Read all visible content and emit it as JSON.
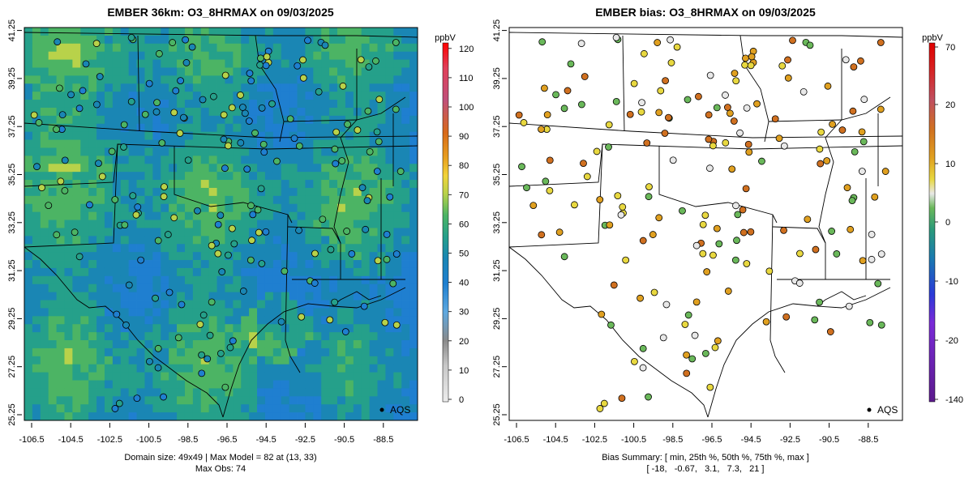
{
  "panels": [
    {
      "title": "EMBER 36km: O3_8HRMAX on 09/03/2025",
      "legend_point_label": "AQS",
      "x_ticks": [
        "-106.5",
        "-104.5",
        "-102.5",
        "-100.5",
        "-98.5",
        "-96.5",
        "-94.5",
        "-92.5",
        "-90.5",
        "-88.5"
      ],
      "y_ticks": [
        "25.25",
        "27.25",
        "29.25",
        "31.25",
        "33.25",
        "35.25",
        "37.25",
        "39.25",
        "41.25"
      ],
      "footer_lines": [
        "Domain size: 49x49 | Max Model = 82 at (13, 33)",
        "Max Obs: 74"
      ],
      "colorbar": {
        "unit": "ppbV",
        "tick_labels": [
          "0",
          "10",
          "20",
          "30",
          "40",
          "50",
          "60",
          "70",
          "80",
          "90",
          "100",
          "110",
          "120"
        ]
      }
    },
    {
      "title": "EMBER bias: O3_8HRMAX on 09/03/2025",
      "legend_point_label": "AQS",
      "x_ticks": [
        "-106.5",
        "-104.5",
        "-102.5",
        "-100.5",
        "-98.5",
        "-96.5",
        "-94.5",
        "-92.5",
        "-90.5",
        "-88.5"
      ],
      "y_ticks": [
        "25.25",
        "27.25",
        "29.25",
        "31.25",
        "33.25",
        "35.25",
        "37.25",
        "39.25",
        "41.25"
      ],
      "footer_lines": [
        "Bias Summary: [ min, 25th %, 50th %, 75th %, max ]",
        "[ -18,   -0.67,   3.1,   7.3,   21 ]"
      ],
      "colorbar": {
        "unit": "ppbV",
        "tick_labels": [
          "-140",
          "-20",
          "-10",
          "0",
          "10",
          "20",
          "70"
        ]
      }
    }
  ],
  "colors": {
    "model_scale": [
      "#d9d9d9",
      "#9a9a9a",
      "#5ea9e0",
      "#1f7fd0",
      "#1a86b4",
      "#25a08a",
      "#4cb464",
      "#b8d24a",
      "#f2d43a",
      "#e8a020",
      "#d86a1a",
      "#c0507a",
      "#e0405a",
      "#ff0000"
    ],
    "bias_scale": [
      "#5b1a8c",
      "#7a2ad8",
      "#2a3ad8",
      "#1a7ab0",
      "#2a9a7a",
      "#6ab85a",
      "#e8e8e8",
      "#e8d840",
      "#e0a020",
      "#d07020",
      "#c05060",
      "#d82020",
      "#e00000"
    ]
  }
}
